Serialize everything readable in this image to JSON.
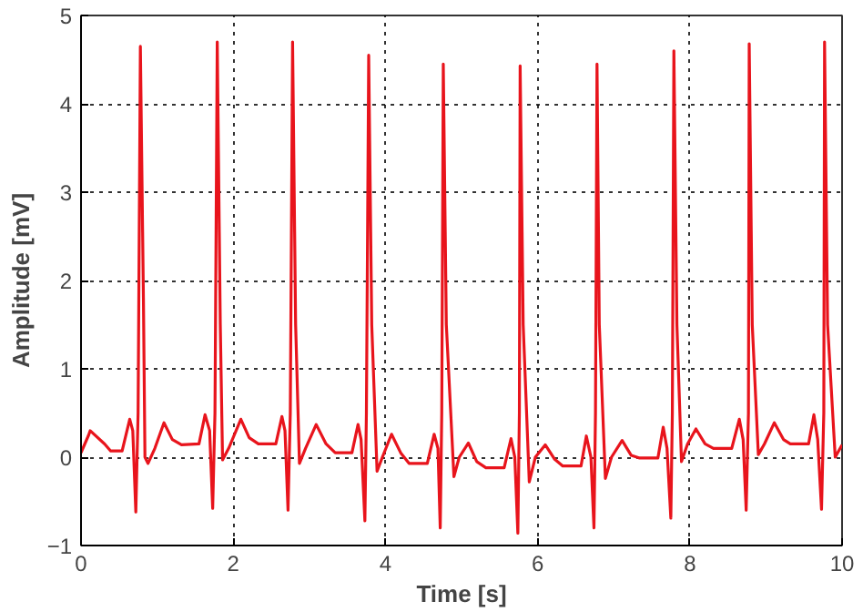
{
  "chart_data": {
    "type": "line",
    "xlabel": "Time [s]",
    "ylabel": "Amplitude [mV]",
    "xlim": [
      0,
      10
    ],
    "ylim": [
      -1,
      5
    ],
    "xticks": [
      0,
      2,
      4,
      6,
      8,
      10
    ],
    "yticks": [
      -1,
      0,
      1,
      2,
      3,
      4,
      5
    ],
    "grid": true,
    "marker": "none",
    "line_style": "solid",
    "series": [
      {
        "color": "#e8141c",
        "x": [
          0,
          0.1,
          0.12,
          0.31,
          0.39,
          0.54,
          0.64,
          0.68,
          0.72,
          0.75,
          0.78,
          0.82,
          0.84,
          0.88,
          0.97,
          1.09,
          1.2,
          1.32,
          1.55,
          1.63,
          1.69,
          1.73,
          1.76,
          1.79,
          1.83,
          1.86,
          1.94,
          2.1,
          2.21,
          2.33,
          2.56,
          2.64,
          2.68,
          2.72,
          2.75,
          2.78,
          2.82,
          2.87,
          2.95,
          3.09,
          3.22,
          3.34,
          3.56,
          3.64,
          3.68,
          3.73,
          3.75,
          3.78,
          3.82,
          3.89,
          3.96,
          4.08,
          4.2,
          4.31,
          4.55,
          4.64,
          4.69,
          4.72,
          4.74,
          4.76,
          4.8,
          4.9,
          4.97,
          5.09,
          5.2,
          5.32,
          5.56,
          5.65,
          5.7,
          5.74,
          5.76,
          5.77,
          5.81,
          5.89,
          5.97,
          6.1,
          6.22,
          6.33,
          6.57,
          6.64,
          6.7,
          6.74,
          6.76,
          6.78,
          6.81,
          6.89,
          6.97,
          7.11,
          7.23,
          7.34,
          7.58,
          7.65,
          7.7,
          7.75,
          7.77,
          7.79,
          7.83,
          7.89,
          7.97,
          8.08,
          8.2,
          8.31,
          8.55,
          8.65,
          8.7,
          8.74,
          8.77,
          8.78,
          8.82,
          8.9,
          8.98,
          9.11,
          9.23,
          9.32,
          9.56,
          9.63,
          9.68,
          9.73,
          9.76,
          9.77,
          9.81,
          9.91,
          10
        ],
        "values": [
          0.05,
          0.25,
          0.3,
          0.15,
          0.07,
          0.07,
          0.43,
          0.3,
          -0.62,
          0.5,
          4.65,
          1.8,
          0,
          -0.07,
          0.1,
          0.39,
          0.2,
          0.14,
          0.15,
          0.48,
          0.3,
          -0.58,
          0.5,
          4.7,
          1.5,
          -0.03,
          0.1,
          0.43,
          0.22,
          0.15,
          0.15,
          0.46,
          0.3,
          -0.6,
          0.5,
          4.7,
          1.5,
          -0.07,
          0.1,
          0.37,
          0.15,
          0.05,
          0.05,
          0.37,
          0.2,
          -0.72,
          0.5,
          4.55,
          1.5,
          -0.16,
          0,
          0.26,
          0.05,
          -0.07,
          -0.07,
          0.26,
          0.1,
          -0.8,
          0.5,
          4.45,
          1.5,
          -0.22,
          0,
          0.16,
          -0.05,
          -0.12,
          -0.12,
          0.21,
          0,
          -0.86,
          0.5,
          4.43,
          1.5,
          -0.28,
          0,
          0.14,
          -0.02,
          -0.1,
          -0.1,
          0.24,
          0,
          -0.8,
          0.5,
          4.45,
          1.5,
          -0.24,
          0,
          0.19,
          0.02,
          -0.01,
          -0.01,
          0.34,
          0.1,
          -0.69,
          0.5,
          4.6,
          1.5,
          -0.05,
          0.15,
          0.32,
          0.15,
          0.1,
          0.1,
          0.43,
          0.2,
          -0.6,
          0.5,
          4.68,
          1.5,
          0.03,
          0.15,
          0.39,
          0.2,
          0.15,
          0.15,
          0.48,
          0.2,
          -0.59,
          0.5,
          4.7,
          1.5,
          0,
          0.14
        ]
      }
    ]
  }
}
